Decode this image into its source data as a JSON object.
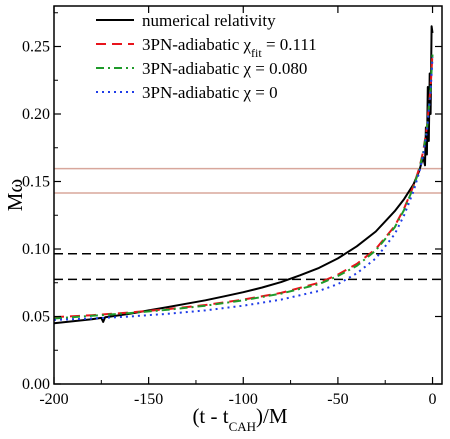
{
  "chart_data": {
    "type": "line",
    "xlabel_main": "(t - t",
    "xlabel_sub": "CAH",
    "xlabel_tail": ")/M",
    "ylabel": "Mω",
    "xlim": [
      -200,
      5
    ],
    "ylim": [
      0,
      0.28
    ],
    "xticks": [
      "-200",
      "-150",
      "-100",
      "-50",
      "0"
    ],
    "yticks": [
      "0.00",
      "0.05",
      "0.10",
      "0.15",
      "0.20",
      "0.25"
    ],
    "legend_position": "top-left",
    "legend": [
      {
        "prefix": "numerical relativity",
        "sub": "",
        "suffix": ""
      },
      {
        "prefix": "3PN-adiabatic χ",
        "sub": "fit",
        "suffix": " = 0.111"
      },
      {
        "prefix": "3PN-adiabatic χ",
        "sub": "",
        "suffix": " = 0.080"
      },
      {
        "prefix": "3PN-adiabatic χ",
        "sub": "",
        "suffix": " = 0"
      }
    ],
    "hlines": [
      {
        "y": 0.1595,
        "color": "#d8a79c",
        "dash": "none"
      },
      {
        "y": 0.1415,
        "color": "#d8a79c",
        "dash": "none"
      },
      {
        "y": 0.0965,
        "color": "#000000",
        "dash": "9,5"
      },
      {
        "y": 0.0775,
        "color": "#000000",
        "dash": "9,5"
      }
    ],
    "series": [
      {
        "color": "#000000",
        "dash": "none",
        "x": [
          -200,
          -190,
          -180,
          -175,
          -174,
          -173,
          -170,
          -160,
          -150,
          -140,
          -130,
          -120,
          -110,
          -100,
          -90,
          -80,
          -70,
          -60,
          -50,
          -40,
          -30,
          -20,
          -15,
          -10,
          -7,
          -5,
          -4,
          -3.5,
          -3,
          -2.5,
          -2,
          -1.5,
          -1,
          -0.5,
          0
        ],
        "y": [
          0.045,
          0.0465,
          0.048,
          0.049,
          0.046,
          0.0495,
          0.05,
          0.052,
          0.0545,
          0.057,
          0.0595,
          0.062,
          0.065,
          0.068,
          0.0715,
          0.0755,
          0.0805,
          0.086,
          0.093,
          0.102,
          0.113,
          0.128,
          0.137,
          0.148,
          0.158,
          0.168,
          0.162,
          0.19,
          0.17,
          0.22,
          0.18,
          0.23,
          0.2,
          0.265,
          0.26
        ]
      },
      {
        "color": "#e8141c",
        "dash": "10,6",
        "x": [
          -200,
          -180,
          -160,
          -140,
          -120,
          -100,
          -80,
          -60,
          -50,
          -40,
          -30,
          -20,
          -15,
          -10,
          -7,
          -5,
          -3,
          -1,
          0
        ],
        "y": [
          0.0495,
          0.051,
          0.053,
          0.0555,
          0.0585,
          0.0625,
          0.0675,
          0.075,
          0.081,
          0.089,
          0.1,
          0.117,
          0.13,
          0.147,
          0.16,
          0.172,
          0.19,
          0.22,
          0.245
        ]
      },
      {
        "color": "#1f9a2a",
        "dash": "8,4,2,4",
        "x": [
          -200,
          -180,
          -160,
          -140,
          -120,
          -100,
          -80,
          -60,
          -50,
          -40,
          -30,
          -20,
          -15,
          -10,
          -7,
          -5,
          -3,
          -1,
          0
        ],
        "y": [
          0.0485,
          0.0505,
          0.0525,
          0.055,
          0.058,
          0.062,
          0.067,
          0.074,
          0.08,
          0.0875,
          0.099,
          0.116,
          0.129,
          0.146,
          0.159,
          0.171,
          0.189,
          0.219,
          0.244
        ]
      },
      {
        "color": "#1f3ce8",
        "dash": "2,4",
        "x": [
          -200,
          -180,
          -160,
          -140,
          -120,
          -100,
          -80,
          -60,
          -50,
          -40,
          -30,
          -20,
          -15,
          -10,
          -7,
          -5,
          -3,
          -1,
          0
        ],
        "y": [
          0.0475,
          0.0485,
          0.05,
          0.052,
          0.0545,
          0.058,
          0.0625,
          0.069,
          0.074,
          0.082,
          0.093,
          0.111,
          0.125,
          0.143,
          0.157,
          0.169,
          0.187,
          0.217,
          0.242
        ]
      }
    ]
  }
}
